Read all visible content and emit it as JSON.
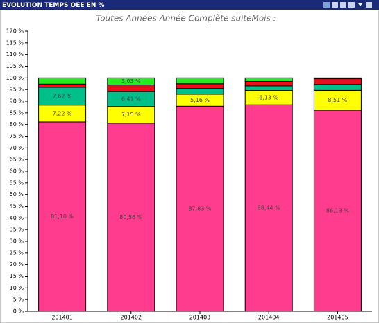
{
  "chart_data": {
    "type": "stacked_bar",
    "title": "EVOLUTION TEMPS OEE EN %",
    "subtitle": "Toutes Années Année Complète suiteMois :",
    "categories": [
      "201401",
      "201402",
      "201403",
      "201404",
      "201405"
    ],
    "ylim": [
      0,
      120
    ],
    "yticks": [
      {
        "value": 0,
        "label": "0 %"
      },
      {
        "value": 5,
        "label": "5 %"
      },
      {
        "value": 10,
        "label": "10 %"
      },
      {
        "value": 15,
        "label": "15 %"
      },
      {
        "value": 20,
        "label": "20 %"
      },
      {
        "value": 25,
        "label": "25 %"
      },
      {
        "value": 30,
        "label": "30 %"
      },
      {
        "value": 35,
        "label": "35 %"
      },
      {
        "value": 40,
        "label": "40 %"
      },
      {
        "value": 45,
        "label": "45 %"
      },
      {
        "value": 50,
        "label": "50 %"
      },
      {
        "value": 55,
        "label": "55 %"
      },
      {
        "value": 60,
        "label": "60 %"
      },
      {
        "value": 65,
        "label": "65 %"
      },
      {
        "value": 70,
        "label": "70 %"
      },
      {
        "value": 75,
        "label": "75 %"
      },
      {
        "value": 80,
        "label": "80 %"
      },
      {
        "value": 85,
        "label": "85 %"
      },
      {
        "value": 90,
        "label": "90 %"
      },
      {
        "value": 95,
        "label": "95 %"
      },
      {
        "value": 100,
        "label": "100 %"
      },
      {
        "value": 105,
        "label": "105 %"
      },
      {
        "value": 110,
        "label": "110 %"
      },
      {
        "value": 115,
        "label": "115 %"
      },
      {
        "value": 120,
        "label": "120 %"
      }
    ],
    "series": [
      {
        "color": "#ff3c8e",
        "values": [
          81.1,
          80.56,
          87.83,
          88.44,
          86.13
        ],
        "value_labels": [
          "81,10 %",
          "80,56 %",
          "87,83 %",
          "88,44 %",
          "86,13 %"
        ]
      },
      {
        "color": "#ffff00",
        "values": [
          7.22,
          7.15,
          5.16,
          6.13,
          8.51
        ],
        "value_labels": [
          "7,22 %",
          "7,15 %",
          "5,16 %",
          "6,13 %",
          "8,51 %"
        ]
      },
      {
        "color": "#00c08a",
        "values": [
          7.62,
          6.41,
          2.5,
          2.0,
          2.6
        ],
        "value_labels": [
          "7,62 %",
          "6,41 %",
          null,
          null,
          null
        ]
      },
      {
        "color": "#e8101a",
        "values": [
          1.4,
          2.85,
          2.0,
          1.9,
          2.4
        ]
      },
      {
        "color": "#22ee22",
        "values": [
          2.66,
          3.03,
          2.51,
          1.53,
          0.36
        ],
        "value_labels": [
          null,
          "3,03 %",
          null,
          null,
          null
        ]
      }
    ]
  }
}
